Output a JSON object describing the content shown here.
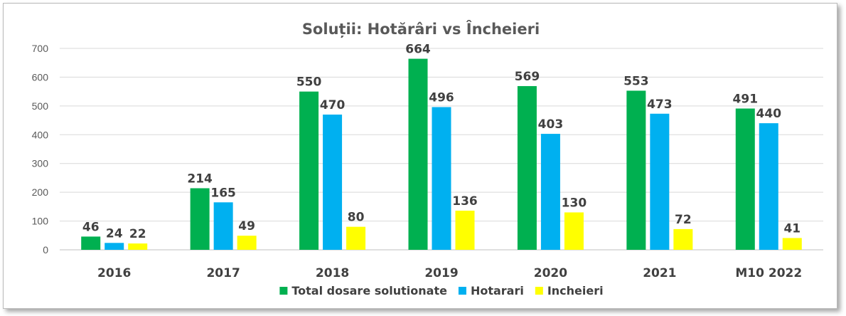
{
  "chart_data": {
    "type": "bar",
    "title": "Soluții: Hotărâri  vs Încheieri",
    "categories": [
      "2016",
      "2017",
      "2018",
      "2019",
      "2020",
      "2021",
      "M10 2022"
    ],
    "series": [
      {
        "name": "Total dosare solutionate",
        "color": "#00b050",
        "values": [
          46,
          214,
          550,
          664,
          569,
          553,
          491
        ]
      },
      {
        "name": "Hotarari",
        "color": "#00b0f0",
        "values": [
          24,
          165,
          470,
          496,
          403,
          473,
          440
        ]
      },
      {
        "name": "Incheieri",
        "color": "#ffff00",
        "values": [
          22,
          49,
          80,
          136,
          130,
          72,
          41
        ]
      }
    ],
    "ylim": [
      0,
      700
    ],
    "yticks": [
      0,
      100,
      200,
      300,
      400,
      500,
      600,
      700
    ],
    "grid": true,
    "legend": "bottom",
    "data_labels": true
  }
}
